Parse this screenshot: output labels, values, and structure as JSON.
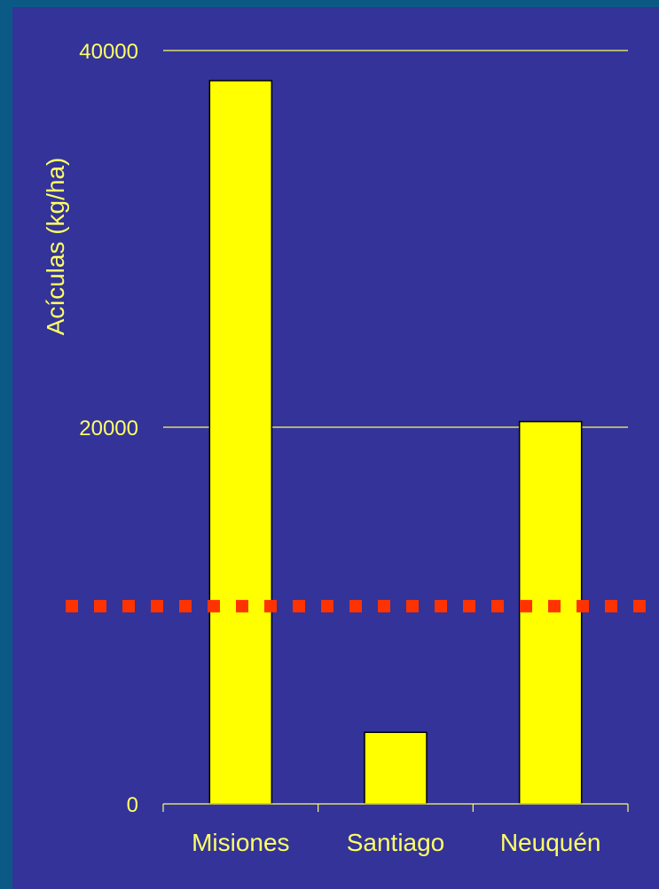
{
  "colors": {
    "outer_background": "#0b5a86",
    "plot_background": "#333399",
    "bar_fill": "#ffff00",
    "bar_stroke": "#000000",
    "text": "#ffff66",
    "gridline": "#ffff66",
    "threshold_line": "#ff3300"
  },
  "chart_data": {
    "type": "bar",
    "ylabel": "Acículas (kg/ha)",
    "xlabel": "",
    "categories": [
      "Misiones",
      "Santiago",
      "Neuquén"
    ],
    "values": [
      38400,
      3800,
      20300
    ],
    "ylim": [
      0,
      40000
    ],
    "yticks": [
      0,
      20000,
      40000
    ],
    "grid": true,
    "legend": "none",
    "reference_line": {
      "y": 10500,
      "style": "dotted"
    }
  }
}
